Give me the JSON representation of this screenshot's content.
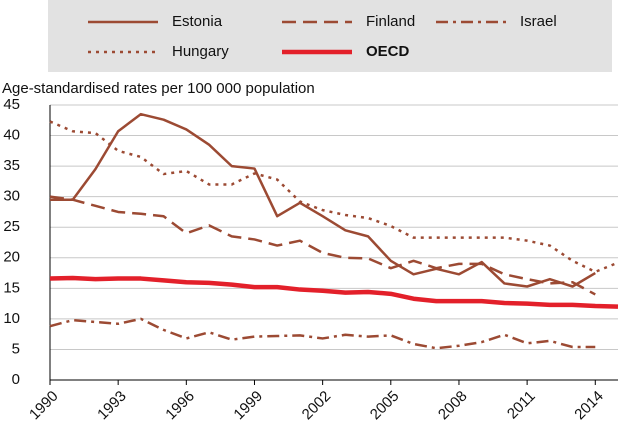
{
  "chart_data": {
    "type": "line",
    "y_label": "Age-standardised rates per 100 000 population",
    "x": [
      1990,
      1991,
      1992,
      1993,
      1994,
      1995,
      1996,
      1997,
      1998,
      1999,
      2000,
      2001,
      2002,
      2003,
      2004,
      2005,
      2006,
      2007,
      2008,
      2009,
      2010,
      2011,
      2012,
      2013,
      2014,
      2015
    ],
    "xlim": [
      1990,
      2015
    ],
    "xticks": [
      1990,
      1993,
      1996,
      1999,
      2002,
      2005,
      2008,
      2011,
      2014
    ],
    "ylim": [
      0,
      45
    ],
    "yticks": [
      0,
      5,
      10,
      15,
      20,
      25,
      30,
      35,
      40,
      45
    ],
    "grid": true,
    "series": [
      {
        "name": "Estonia",
        "color": "#9c4a33",
        "style": "solid",
        "values": [
          29.5,
          29.5,
          34.5,
          40.7,
          43.5,
          42.6,
          41,
          38.5,
          35,
          34.6,
          26.8,
          29,
          26.8,
          24.5,
          23.5,
          19.5,
          17.3,
          18.2,
          17.3,
          19.3,
          15.8,
          15.3,
          16.5,
          15.3,
          17.5,
          null
        ]
      },
      {
        "name": "Finland",
        "color": "#9c4a33",
        "style": "dashed",
        "values": [
          30,
          29.5,
          28.5,
          27.5,
          27.2,
          26.8,
          24,
          25.3,
          23.5,
          23,
          22,
          22.8,
          20.8,
          20,
          19.9,
          18.3,
          19.5,
          18.3,
          19,
          19,
          17.3,
          16.5,
          15.8,
          16,
          14,
          null
        ]
      },
      {
        "name": "Israel",
        "color": "#9c4a33",
        "style": "dashdot",
        "values": [
          8.8,
          9.8,
          9.5,
          9.2,
          10,
          8.2,
          6.8,
          7.8,
          6.6,
          7.1,
          7.2,
          7.3,
          6.8,
          7.4,
          7.1,
          7.3,
          5.9,
          5.2,
          5.6,
          6.2,
          7.4,
          6,
          6.4,
          5.4,
          5.4,
          null
        ]
      },
      {
        "name": "Hungary",
        "color": "#9c4a33",
        "style": "dotted",
        "values": [
          42.3,
          40.7,
          40.4,
          37.5,
          36.5,
          33.7,
          34.2,
          32,
          32,
          33.8,
          32.8,
          29.2,
          27.8,
          27,
          26.5,
          25.2,
          23.3,
          23.3,
          23.3,
          23.3,
          23.3,
          22.8,
          22,
          19.5,
          17.7,
          19.2
        ]
      },
      {
        "name": "OECD",
        "color": "#e3202a",
        "style": "thick",
        "values": [
          16.6,
          16.7,
          16.5,
          16.6,
          16.6,
          16.3,
          16,
          15.9,
          15.6,
          15.2,
          15.2,
          14.8,
          14.6,
          14.3,
          14.4,
          14.1,
          13.3,
          12.9,
          12.9,
          12.9,
          12.6,
          12.5,
          12.3,
          12.3,
          12.1,
          12
        ]
      }
    ]
  }
}
